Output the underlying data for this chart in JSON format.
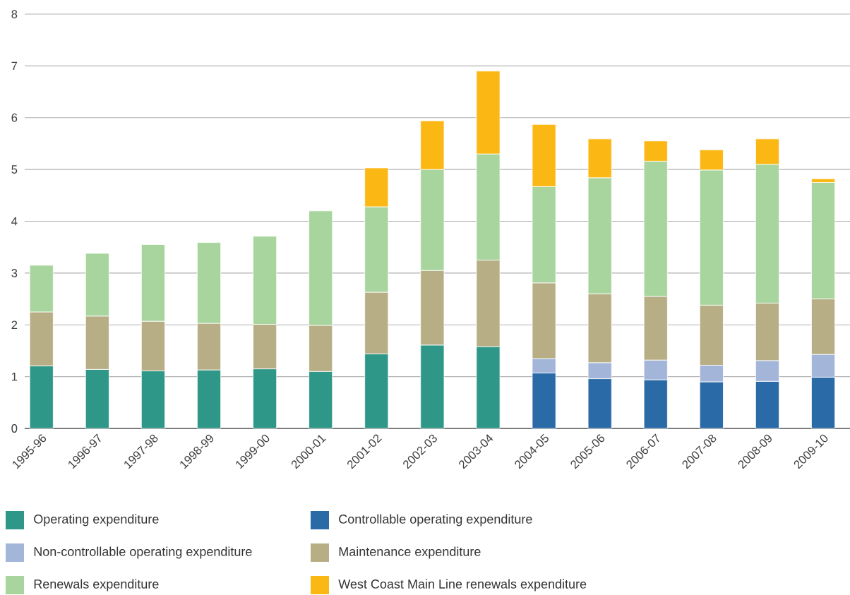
{
  "chart_data": {
    "type": "bar",
    "stacked": true,
    "categories": [
      "1995-96",
      "1996-97",
      "1997-98",
      "1998-99",
      "1999-00",
      "2000-01",
      "2001-02",
      "2002-03",
      "2003-04",
      "2004-05",
      "2005-06",
      "2006-07",
      "2007-08",
      "2008-09",
      "2009-10"
    ],
    "series": [
      {
        "name": "Operating expenditure",
        "color": "#2e9787",
        "values": [
          1.21,
          1.14,
          1.11,
          1.13,
          1.15,
          1.1,
          1.44,
          1.61,
          1.58,
          null,
          null,
          null,
          null,
          null,
          null
        ]
      },
      {
        "name": "Controllable operating expenditure",
        "color": "#2a6aa6",
        "values": [
          null,
          null,
          null,
          null,
          null,
          null,
          null,
          null,
          null,
          1.07,
          0.96,
          0.94,
          0.9,
          0.91,
          0.99
        ]
      },
      {
        "name": "Non-controllable operating expenditure",
        "color": "#a3b5d8",
        "values": [
          null,
          null,
          null,
          null,
          null,
          null,
          null,
          null,
          null,
          0.28,
          0.31,
          0.38,
          0.32,
          0.4,
          0.44
        ]
      },
      {
        "name": "Maintenance expenditure",
        "color": "#b8ae86",
        "values": [
          1.04,
          1.03,
          0.96,
          0.9,
          0.86,
          0.89,
          1.19,
          1.44,
          1.67,
          1.46,
          1.33,
          1.23,
          1.16,
          1.11,
          1.07
        ]
      },
      {
        "name": "Renewals expenditure",
        "color": "#a8d59e",
        "values": [
          0.9,
          1.21,
          1.48,
          1.56,
          1.7,
          2.21,
          1.65,
          1.95,
          2.05,
          1.86,
          2.24,
          2.61,
          2.61,
          2.68,
          2.25
        ]
      },
      {
        "name": "West Coast Main Line renewals expenditure",
        "color": "#fbb714",
        "values": [
          null,
          null,
          null,
          null,
          null,
          null,
          0.75,
          0.94,
          1.6,
          1.2,
          0.75,
          0.39,
          0.39,
          0.49,
          0.07
        ]
      }
    ],
    "ylim": [
      0,
      8
    ],
    "yticks": [
      0,
      1,
      2,
      3,
      4,
      5,
      6,
      7,
      8
    ],
    "grid": "y",
    "legend": "bottom"
  }
}
